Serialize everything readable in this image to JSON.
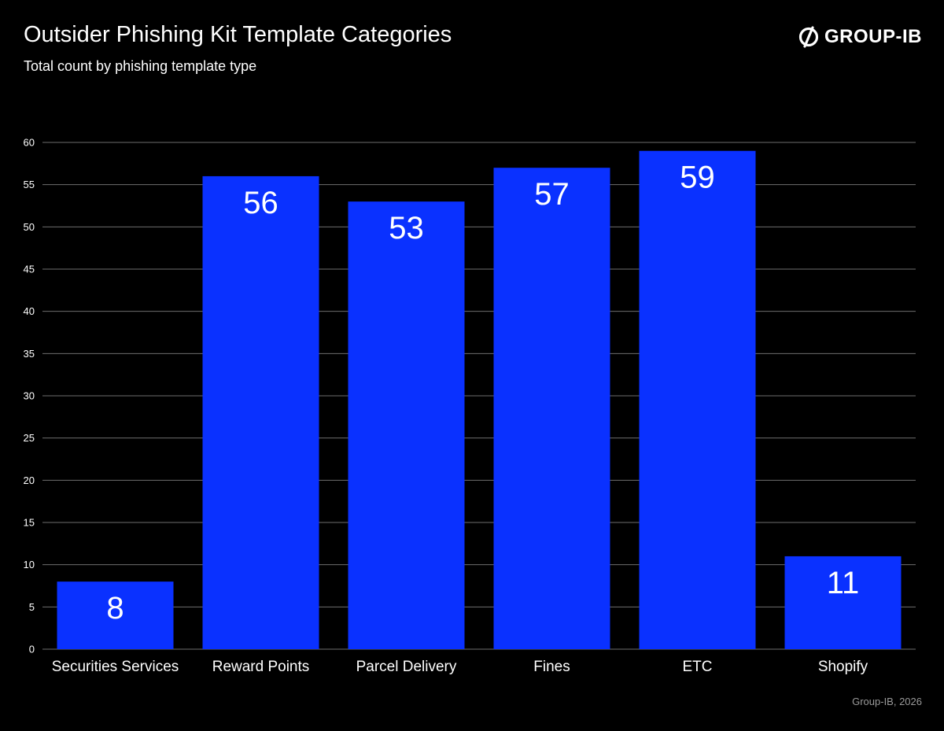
{
  "header": {
    "title": "Outsider Phishing Kit Template Categories",
    "subtitle": "Total count by phishing template type"
  },
  "brand": {
    "name": "GROUP-IB",
    "icon": "group-ib-logo-icon"
  },
  "footer": {
    "source": "Group-IB, 2026"
  },
  "colors": {
    "background": "#000000",
    "bar": "#0a31ff",
    "grid": "#6e6e6e",
    "text": "#ffffff",
    "muted_text": "#9a9a9a"
  },
  "chart_data": {
    "type": "bar",
    "title": "Outsider Phishing Kit Template Categories",
    "subtitle": "Total count by phishing template type",
    "categories": [
      "Securities Services",
      "Reward Points",
      "Parcel Delivery",
      "Fines",
      "ETC",
      "Shopify"
    ],
    "values": [
      8,
      56,
      53,
      57,
      59,
      11
    ],
    "data_labels": [
      "8",
      "56",
      "53",
      "57",
      "59",
      "11"
    ],
    "yticks": [
      0,
      5,
      10,
      15,
      20,
      25,
      30,
      35,
      40,
      45,
      50,
      55,
      60
    ],
    "ytick_labels": [
      "0",
      "5",
      "10",
      "15",
      "20",
      "25",
      "30",
      "35",
      "40",
      "45",
      "50",
      "55",
      "60"
    ],
    "ylim": [
      0,
      60
    ],
    "xlabel": "",
    "ylabel": "",
    "grid": true,
    "legend": "none"
  }
}
